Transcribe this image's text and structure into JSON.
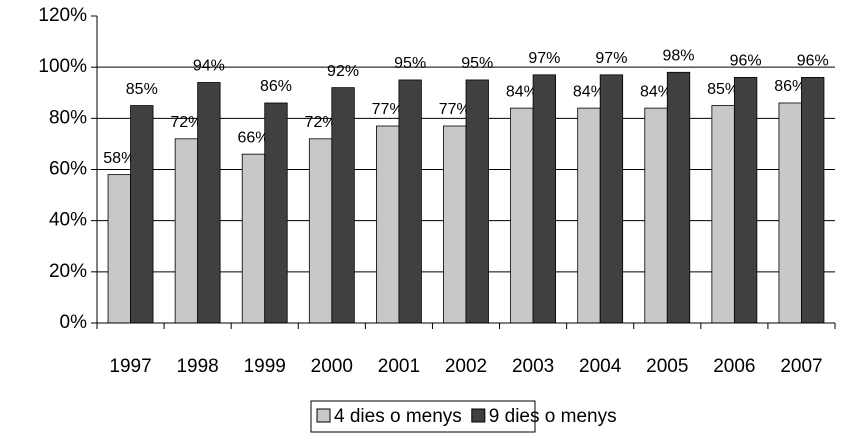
{
  "chart_data": {
    "type": "bar",
    "categories": [
      "1997",
      "1998",
      "1999",
      "2000",
      "2001",
      "2002",
      "2003",
      "2004",
      "2005",
      "2006",
      "2007"
    ],
    "series": [
      {
        "name": "4 dies o menys",
        "color": "#c8c8c8",
        "values": [
          58,
          72,
          66,
          72,
          77,
          77,
          84,
          84,
          84,
          85,
          86
        ],
        "value_labels": [
          "58%",
          "72%",
          "66%",
          "72%",
          "77%",
          "77%",
          "84%",
          "84%",
          "84%",
          "85%",
          "86%"
        ]
      },
      {
        "name": "9 dies o menys",
        "color": "#404040",
        "values": [
          85,
          94,
          86,
          92,
          95,
          95,
          97,
          97,
          98,
          96,
          96
        ],
        "value_labels": [
          "85%",
          "94%",
          "86%",
          "92%",
          "95%",
          "95%",
          "97%",
          "97%",
          "98%",
          "96%",
          "96%"
        ]
      }
    ],
    "ylim": [
      0,
      120
    ],
    "yticks": [
      {
        "value": 0,
        "label": "0%"
      },
      {
        "value": 20,
        "label": "20%"
      },
      {
        "value": 40,
        "label": "40%"
      },
      {
        "value": 60,
        "label": "60%"
      },
      {
        "value": 80,
        "label": "80%"
      },
      {
        "value": 100,
        "label": "100%"
      },
      {
        "value": 120,
        "label": "120%"
      }
    ],
    "grid": true,
    "legend": "bottom"
  }
}
